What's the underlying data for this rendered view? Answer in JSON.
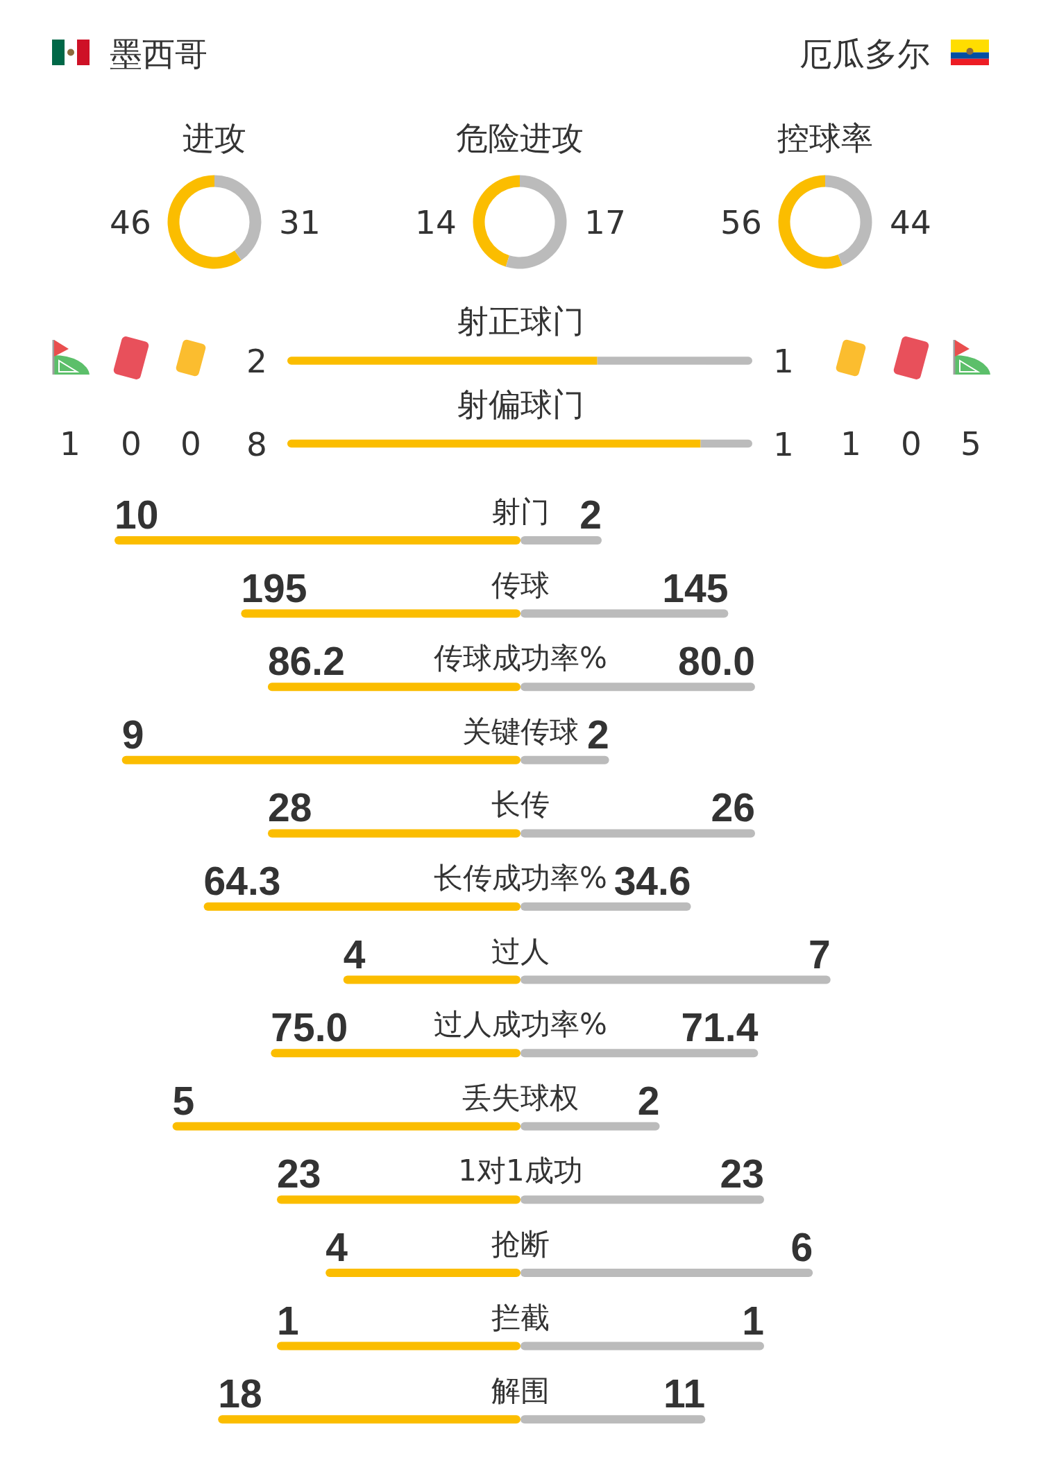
{
  "chart_data": [
    {
      "type": "other",
      "annotations": [
        "墨西哥",
        "厄瓜多尔"
      ]
    },
    {
      "type": "donut",
      "title": "进攻",
      "categories": [
        null,
        null
      ],
      "values": [
        46,
        31
      ],
      "colors": [
        "#fbbd00",
        "#bbbbbb"
      ],
      "data_labels": true
    },
    {
      "type": "donut",
      "title": "危险进攻",
      "categories": [
        null,
        null
      ],
      "values": [
        14,
        17
      ],
      "colors": [
        "#fbbd00",
        "#bbbbbb"
      ],
      "data_labels": true
    },
    {
      "type": "donut",
      "title": "控球率",
      "categories": [
        null,
        null
      ],
      "values": [
        56,
        44
      ],
      "colors": [
        "#fbbd00",
        "#bbbbbb"
      ],
      "data_labels": true
    },
    {
      "type": "other",
      "annotations": [
        "1",
        "0",
        "0",
        "1",
        "0",
        "5"
      ]
    },
    {
      "type": "bar",
      "orientation": "horizontal",
      "stacked": true,
      "categories": [
        "射正球门"
      ],
      "series": [
        {
          "color": "#fbbd00",
          "values": [
            2
          ]
        },
        {
          "color": "#bbbbbb",
          "values": [
            1
          ]
        }
      ],
      "data_labels": true
    },
    {
      "type": "bar",
      "orientation": "horizontal",
      "stacked": true,
      "categories": [
        "射偏球门"
      ],
      "series": [
        {
          "color": "#fbbd00",
          "values": [
            8
          ]
        },
        {
          "color": "#bbbbbb",
          "values": [
            1
          ]
        }
      ],
      "data_labels": true
    },
    {
      "type": "bar",
      "orientation": "horizontal",
      "stacked": true,
      "categories": [
        "射门"
      ],
      "series": [
        {
          "color": "#fbbd00",
          "values": [
            10
          ],
          "value_labels": [
            "10"
          ]
        },
        {
          "color": "#bbbbbb",
          "values": [
            2
          ],
          "value_labels": [
            "2"
          ]
        }
      ]
    },
    {
      "type": "bar",
      "orientation": "horizontal",
      "stacked": true,
      "categories": [
        "传球"
      ],
      "series": [
        {
          "color": "#fbbd00",
          "values": [
            195
          ],
          "value_labels": [
            "195"
          ]
        },
        {
          "color": "#bbbbbb",
          "values": [
            145
          ],
          "value_labels": [
            "145"
          ]
        }
      ]
    },
    {
      "type": "bar",
      "orientation": "horizontal",
      "stacked": true,
      "categories": [
        "传球成功率%"
      ],
      "series": [
        {
          "color": "#fbbd00",
          "values": [
            86.2
          ],
          "value_labels": [
            "86.2"
          ]
        },
        {
          "color": "#bbbbbb",
          "values": [
            80.0
          ],
          "value_labels": [
            "80.0"
          ]
        }
      ]
    },
    {
      "type": "bar",
      "orientation": "horizontal",
      "stacked": true,
      "categories": [
        "关键传球"
      ],
      "series": [
        {
          "color": "#fbbd00",
          "values": [
            9
          ],
          "value_labels": [
            "9"
          ]
        },
        {
          "color": "#bbbbbb",
          "values": [
            2
          ],
          "value_labels": [
            "2"
          ]
        }
      ]
    },
    {
      "type": "bar",
      "orientation": "horizontal",
      "stacked": true,
      "categories": [
        "长传"
      ],
      "series": [
        {
          "color": "#fbbd00",
          "values": [
            28
          ],
          "value_labels": [
            "28"
          ]
        },
        {
          "color": "#bbbbbb",
          "values": [
            26
          ],
          "value_labels": [
            "26"
          ]
        }
      ]
    },
    {
      "type": "bar",
      "orientation": "horizontal",
      "stacked": true,
      "categories": [
        "长传成功率%"
      ],
      "series": [
        {
          "color": "#fbbd00",
          "values": [
            64.3
          ],
          "value_labels": [
            "64.3"
          ]
        },
        {
          "color": "#bbbbbb",
          "values": [
            34.6
          ],
          "value_labels": [
            "34.6"
          ]
        }
      ]
    },
    {
      "type": "bar",
      "orientation": "horizontal",
      "stacked": true,
      "categories": [
        "过人"
      ],
      "series": [
        {
          "color": "#fbbd00",
          "values": [
            4
          ],
          "value_labels": [
            "4"
          ]
        },
        {
          "color": "#bbbbbb",
          "values": [
            7
          ],
          "value_labels": [
            "7"
          ]
        }
      ]
    },
    {
      "type": "bar",
      "orientation": "horizontal",
      "stacked": true,
      "categories": [
        "过人成功率%"
      ],
      "series": [
        {
          "color": "#fbbd00",
          "values": [
            75.0
          ],
          "value_labels": [
            "75.0"
          ]
        },
        {
          "color": "#bbbbbb",
          "values": [
            71.4
          ],
          "value_labels": [
            "71.4"
          ]
        }
      ]
    },
    {
      "type": "bar",
      "orientation": "horizontal",
      "stacked": true,
      "categories": [
        "丢失球权"
      ],
      "series": [
        {
          "color": "#fbbd00",
          "values": [
            5
          ],
          "value_labels": [
            "5"
          ]
        },
        {
          "color": "#bbbbbb",
          "values": [
            2
          ],
          "value_labels": [
            "2"
          ]
        }
      ]
    },
    {
      "type": "bar",
      "orientation": "horizontal",
      "stacked": true,
      "categories": [
        "1对1成功"
      ],
      "series": [
        {
          "color": "#fbbd00",
          "values": [
            23
          ],
          "value_labels": [
            "23"
          ]
        },
        {
          "color": "#bbbbbb",
          "values": [
            23
          ],
          "value_labels": [
            "23"
          ]
        }
      ]
    },
    {
      "type": "bar",
      "orientation": "horizontal",
      "stacked": true,
      "categories": [
        "抢断"
      ],
      "series": [
        {
          "color": "#fbbd00",
          "values": [
            4
          ],
          "value_labels": [
            "4"
          ]
        },
        {
          "color": "#bbbbbb",
          "values": [
            6
          ],
          "value_labels": [
            "6"
          ]
        }
      ]
    },
    {
      "type": "bar",
      "orientation": "horizontal",
      "stacked": true,
      "categories": [
        "拦截"
      ],
      "series": [
        {
          "color": "#fbbd00",
          "values": [
            1
          ],
          "value_labels": [
            "1"
          ]
        },
        {
          "color": "#bbbbbb",
          "values": [
            1
          ],
          "value_labels": [
            "1"
          ]
        }
      ]
    },
    {
      "type": "bar",
      "orientation": "horizontal",
      "stacked": true,
      "categories": [
        "解围"
      ],
      "series": [
        {
          "color": "#fbbd00",
          "values": [
            18
          ],
          "value_labels": [
            "18"
          ]
        },
        {
          "color": "#bbbbbb",
          "values": [
            11
          ],
          "value_labels": [
            "11"
          ]
        }
      ]
    }
  ]
}
